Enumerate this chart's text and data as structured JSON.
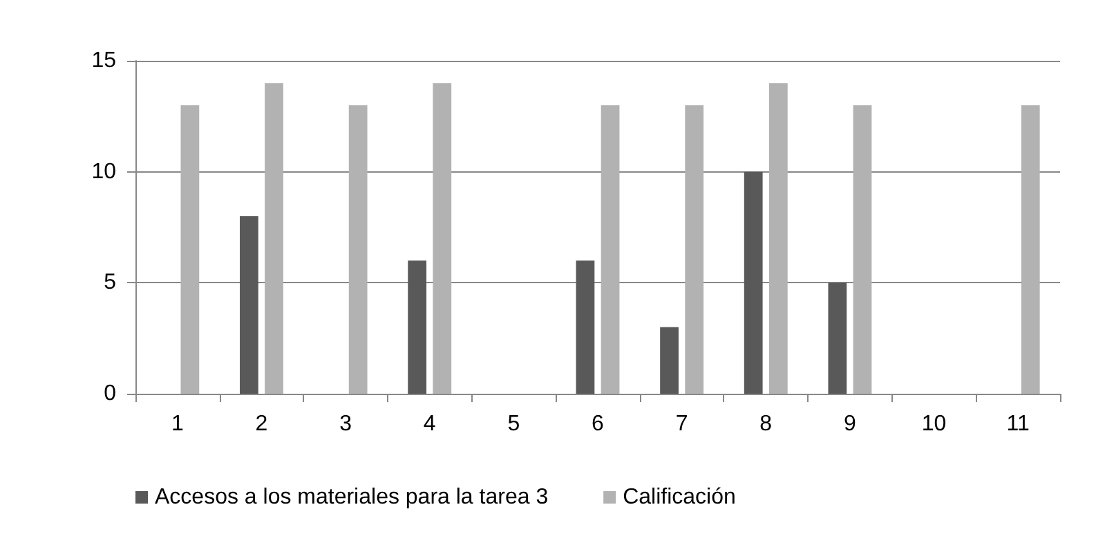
{
  "chart_data": {
    "type": "bar",
    "categories": [
      "1",
      "2",
      "3",
      "4",
      "5",
      "6",
      "7",
      "8",
      "9",
      "10",
      "11"
    ],
    "series": [
      {
        "name": "Accesos a los materiales para la tarea 3",
        "color": "#595959",
        "values": [
          0,
          8,
          0,
          6,
          0,
          6,
          3,
          10,
          5,
          0,
          0
        ]
      },
      {
        "name": "Calificación",
        "color": "#b2b2b2",
        "values": [
          13,
          14,
          13,
          14,
          0,
          13,
          13,
          14,
          13,
          0,
          13
        ]
      }
    ],
    "ylim": [
      0,
      15
    ],
    "yticks": [
      0,
      5,
      10,
      15
    ],
    "grid": "y",
    "legend": "bottom"
  }
}
